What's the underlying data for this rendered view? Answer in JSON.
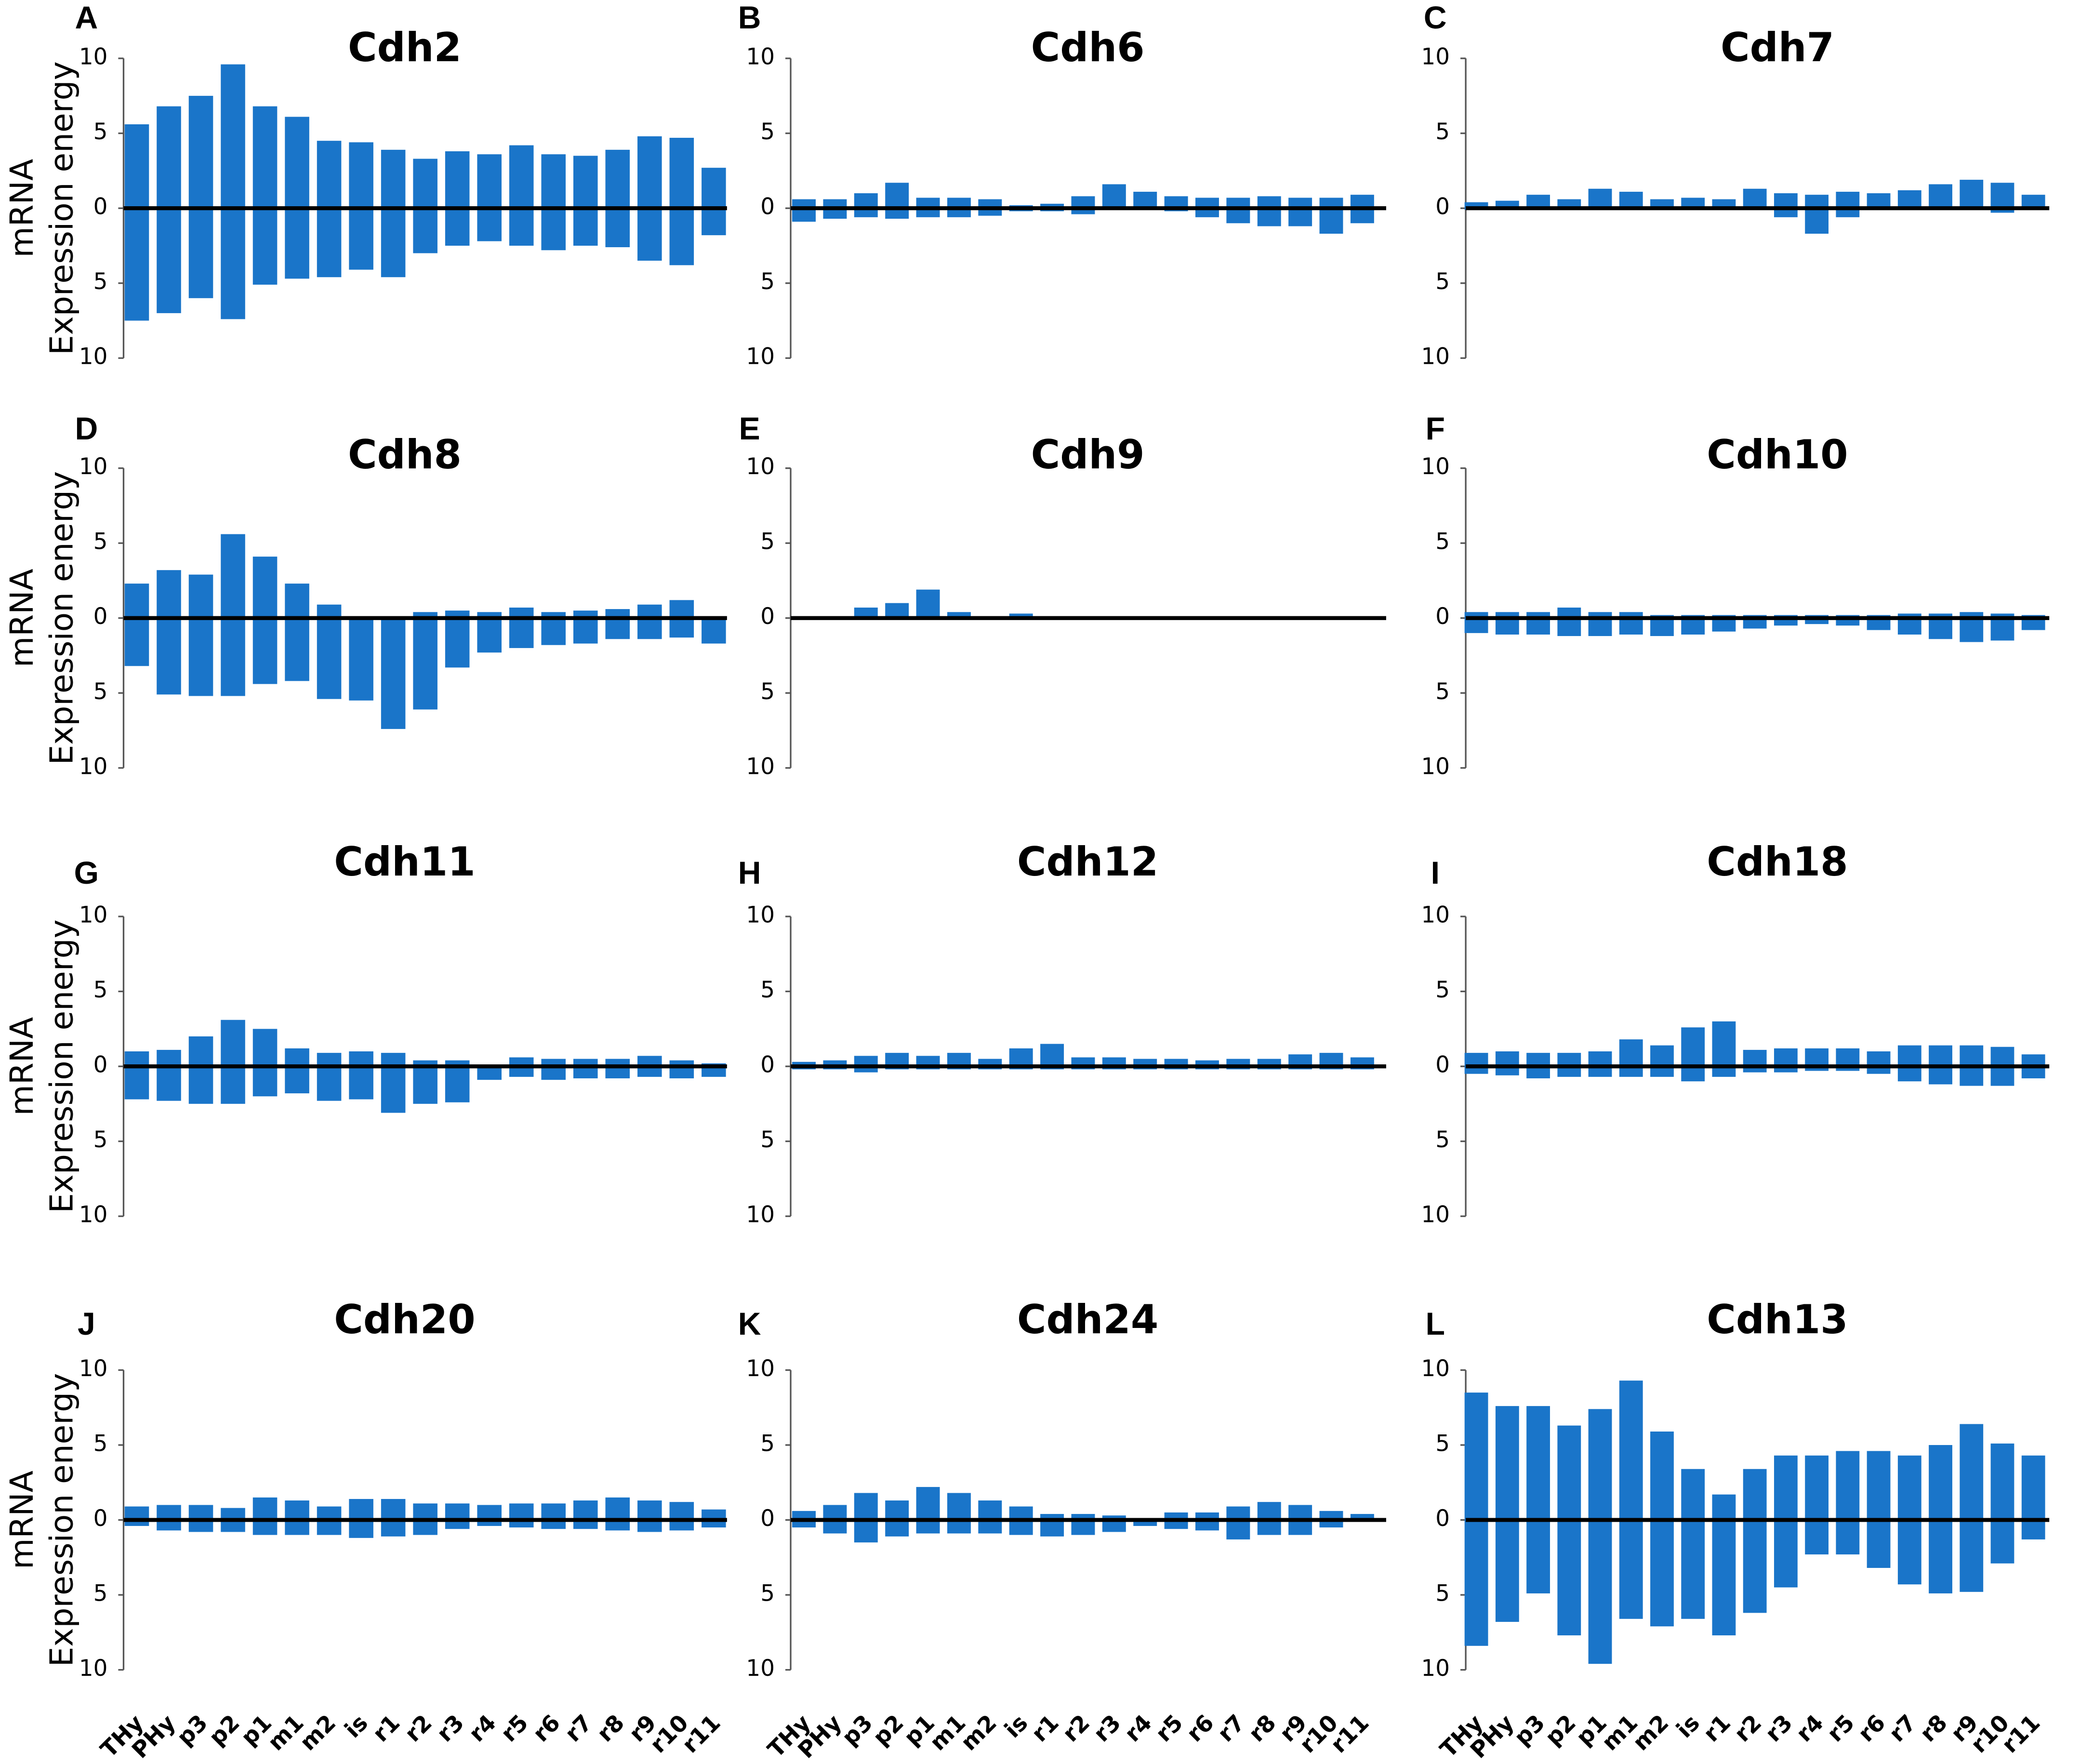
{
  "chart_data": [
    {
      "type": "bar",
      "letter": "A",
      "title": "Cdh2",
      "ylabel": [
        "mRNA",
        "Expression energy"
      ],
      "ylim": [
        -10,
        10
      ],
      "yticks": [
        {
          "value": -10,
          "label": "10"
        },
        {
          "value": -5,
          "label": "5"
        },
        0,
        5,
        10
      ],
      "series": [
        {
          "color": "#1a75c9",
          "values": [
            5.6,
            6.8,
            7.5,
            9.6,
            6.8,
            6.1,
            4.5,
            4.4,
            3.9,
            3.3,
            3.8,
            3.6,
            4.2,
            3.6,
            3.5,
            3.9,
            4.8,
            4.7,
            2.7
          ]
        },
        {
          "color": "#1a75c9",
          "values": [
            -7.5,
            -7.0,
            -6.0,
            -7.4,
            -5.1,
            -4.7,
            -4.6,
            -4.1,
            -4.6,
            -3.0,
            -2.5,
            -2.2,
            -2.5,
            -2.8,
            -2.5,
            -2.6,
            -3.5,
            -3.8,
            -1.8
          ]
        }
      ]
    },
    {
      "type": "bar",
      "letter": "B",
      "title": "Cdh6",
      "ylim": [
        -10,
        10
      ],
      "yticks": [
        {
          "value": -10,
          "label": "10"
        },
        {
          "value": -5,
          "label": "5"
        },
        0,
        5,
        10
      ],
      "series": [
        {
          "color": "#1a75c9",
          "values": [
            0.6,
            0.6,
            1.0,
            1.7,
            0.7,
            0.7,
            0.6,
            0.2,
            0.3,
            0.8,
            1.6,
            1.1,
            0.8,
            0.7,
            0.7,
            0.8,
            0.7,
            0.7,
            0.9
          ]
        },
        {
          "color": "#1a75c9",
          "values": [
            -0.9,
            -0.7,
            -0.6,
            -0.7,
            -0.6,
            -0.6,
            -0.5,
            -0.2,
            -0.2,
            -0.4,
            -0.1,
            -0.1,
            -0.2,
            -0.6,
            -1.0,
            -1.2,
            -1.2,
            -1.7,
            -1.0
          ]
        }
      ]
    },
    {
      "type": "bar",
      "letter": "C",
      "title": "Cdh7",
      "ylim": [
        -10,
        10
      ],
      "yticks": [
        {
          "value": -10,
          "label": "10"
        },
        {
          "value": -5,
          "label": "5"
        },
        0,
        5,
        10
      ],
      "series": [
        {
          "color": "#1a75c9",
          "values": [
            0.4,
            0.5,
            0.9,
            0.6,
            1.3,
            1.1,
            0.6,
            0.7,
            0.6,
            1.3,
            1.0,
            0.9,
            1.1,
            1.0,
            1.2,
            1.6,
            1.9,
            1.7,
            0.9
          ]
        },
        {
          "color": "#1a75c9",
          "values": [
            -0.1,
            -0.1,
            -0.1,
            -0.1,
            -0.1,
            -0.1,
            -0.1,
            -0.1,
            -0.1,
            -0.1,
            -0.6,
            -1.7,
            -0.6,
            -0.1,
            -0.1,
            -0.1,
            -0.1,
            -0.3,
            -0.1
          ]
        }
      ]
    },
    {
      "type": "bar",
      "letter": "D",
      "title": "Cdh8",
      "ylabel": [
        "mRNA",
        "Expression energy"
      ],
      "ylim": [
        -10,
        10
      ],
      "yticks": [
        {
          "value": -10,
          "label": "10"
        },
        {
          "value": -5,
          "label": "5"
        },
        0,
        5,
        10
      ],
      "series": [
        {
          "color": "#1a75c9",
          "values": [
            2.3,
            3.2,
            2.9,
            5.6,
            4.1,
            2.3,
            0.9,
            0,
            0,
            0.4,
            0.5,
            0.4,
            0.7,
            0.4,
            0.5,
            0.6,
            0.9,
            1.2,
            0
          ]
        },
        {
          "color": "#1a75c9",
          "values": [
            -3.2,
            -5.1,
            -5.2,
            -5.2,
            -4.4,
            -4.2,
            -5.4,
            -5.5,
            -7.4,
            -6.1,
            -3.3,
            -2.3,
            -2.0,
            -1.8,
            -1.7,
            -1.4,
            -1.4,
            -1.3,
            -1.7
          ]
        }
      ]
    },
    {
      "type": "bar",
      "letter": "E",
      "title": "Cdh9",
      "ylim": [
        -10,
        10
      ],
      "yticks": [
        {
          "value": -10,
          "label": "10"
        },
        {
          "value": -5,
          "label": "5"
        },
        0,
        5,
        10
      ],
      "series": [
        {
          "color": "#1a75c9",
          "values": [
            0,
            0,
            0.7,
            1.0,
            1.9,
            0.4,
            0,
            0.3,
            0,
            0,
            0,
            0,
            0,
            0,
            0,
            0,
            0,
            0,
            0
          ]
        },
        {
          "color": "#1a75c9",
          "values": [
            0,
            0,
            0,
            0,
            0,
            0,
            0,
            0,
            0,
            0,
            0,
            0,
            0,
            0,
            0,
            0,
            0,
            0,
            0
          ]
        }
      ]
    },
    {
      "type": "bar",
      "letter": "F",
      "title": "Cdh10",
      "ylim": [
        -10,
        10
      ],
      "yticks": [
        {
          "value": -10,
          "label": "10"
        },
        {
          "value": -5,
          "label": "5"
        },
        0,
        5,
        10
      ],
      "series": [
        {
          "color": "#1a75c9",
          "values": [
            0.4,
            0.4,
            0.4,
            0.7,
            0.4,
            0.4,
            0.2,
            0.2,
            0.2,
            0.2,
            0.2,
            0.2,
            0.2,
            0.2,
            0.3,
            0.3,
            0.4,
            0.3,
            0.2
          ]
        },
        {
          "color": "#1a75c9",
          "values": [
            -1.0,
            -1.1,
            -1.1,
            -1.2,
            -1.2,
            -1.1,
            -1.2,
            -1.1,
            -0.9,
            -0.7,
            -0.5,
            -0.4,
            -0.5,
            -0.8,
            -1.1,
            -1.4,
            -1.6,
            -1.5,
            -0.8
          ]
        }
      ]
    },
    {
      "type": "bar",
      "letter": "G",
      "title": "Cdh11",
      "ylabel": [
        "mRNA",
        "Expression energy"
      ],
      "ylim": [
        -10,
        10
      ],
      "yticks": [
        {
          "value": -10,
          "label": "10"
        },
        {
          "value": -5,
          "label": "5"
        },
        0,
        5,
        10
      ],
      "series": [
        {
          "color": "#1a75c9",
          "values": [
            1.0,
            1.1,
            2.0,
            3.1,
            2.5,
            1.2,
            0.9,
            1.0,
            0.9,
            0.4,
            0.4,
            0.1,
            0.6,
            0.5,
            0.5,
            0.5,
            0.7,
            0.4,
            0.2
          ]
        },
        {
          "color": "#1a75c9",
          "values": [
            -2.2,
            -2.3,
            -2.5,
            -2.5,
            -2.0,
            -1.8,
            -2.3,
            -2.2,
            -3.1,
            -2.5,
            -2.4,
            -0.9,
            -0.7,
            -0.9,
            -0.8,
            -0.8,
            -0.7,
            -0.8,
            -0.7
          ]
        }
      ]
    },
    {
      "type": "bar",
      "letter": "H",
      "title": "Cdh12",
      "ylim": [
        -10,
        10
      ],
      "yticks": [
        {
          "value": -10,
          "label": "10"
        },
        {
          "value": -5,
          "label": "5"
        },
        0,
        5,
        10
      ],
      "series": [
        {
          "color": "#1a75c9",
          "values": [
            0.3,
            0.4,
            0.7,
            0.9,
            0.7,
            0.9,
            0.5,
            1.2,
            1.5,
            0.6,
            0.6,
            0.5,
            0.5,
            0.4,
            0.5,
            0.5,
            0.8,
            0.9,
            0.6
          ]
        },
        {
          "color": "#1a75c9",
          "values": [
            -0.2,
            -0.2,
            -0.4,
            -0.2,
            -0.2,
            -0.2,
            -0.2,
            -0.2,
            -0.2,
            -0.2,
            -0.2,
            -0.2,
            -0.2,
            -0.2,
            -0.2,
            -0.2,
            -0.2,
            -0.2,
            -0.2
          ]
        }
      ]
    },
    {
      "type": "bar",
      "letter": "I",
      "title": "Cdh18",
      "ylim": [
        -10,
        10
      ],
      "yticks": [
        {
          "value": -10,
          "label": "10"
        },
        {
          "value": -5,
          "label": "5"
        },
        0,
        5,
        10
      ],
      "series": [
        {
          "color": "#1a75c9",
          "values": [
            0.9,
            1.0,
            0.9,
            0.9,
            1.0,
            1.8,
            1.4,
            2.6,
            3.0,
            1.1,
            1.2,
            1.2,
            1.2,
            1.0,
            1.4,
            1.4,
            1.4,
            1.3,
            0.8
          ]
        },
        {
          "color": "#1a75c9",
          "values": [
            -0.5,
            -0.6,
            -0.8,
            -0.7,
            -0.7,
            -0.7,
            -0.7,
            -1.0,
            -0.7,
            -0.4,
            -0.4,
            -0.3,
            -0.3,
            -0.5,
            -1.0,
            -1.2,
            -1.3,
            -1.3,
            -0.8
          ]
        }
      ]
    },
    {
      "type": "bar",
      "letter": "J",
      "title": "Cdh20",
      "ylabel": [
        "mRNA",
        "Expression energy"
      ],
      "ylim": [
        -10,
        10
      ],
      "yticks": [
        {
          "value": -10,
          "label": "10"
        },
        {
          "value": -5,
          "label": "5"
        },
        0,
        5,
        10
      ],
      "categories": [
        "THy",
        "PHy",
        "p3",
        "p2",
        "p1",
        "m1",
        "m2",
        "is",
        "r1",
        "r2",
        "r3",
        "r4",
        "r5",
        "r6",
        "r7",
        "r8",
        "r9",
        "r10",
        "r11"
      ],
      "series": [
        {
          "color": "#1a75c9",
          "values": [
            0.9,
            1.0,
            1.0,
            0.8,
            1.5,
            1.3,
            0.9,
            1.4,
            1.4,
            1.1,
            1.1,
            1.0,
            1.1,
            1.1,
            1.3,
            1.5,
            1.3,
            1.2,
            0.7
          ]
        },
        {
          "color": "#1a75c9",
          "values": [
            -0.4,
            -0.7,
            -0.8,
            -0.8,
            -1.0,
            -1.0,
            -1.0,
            -1.2,
            -1.1,
            -1.0,
            -0.6,
            -0.4,
            -0.5,
            -0.6,
            -0.6,
            -0.7,
            -0.8,
            -0.7,
            -0.5
          ]
        }
      ]
    },
    {
      "type": "bar",
      "letter": "K",
      "title": "Cdh24",
      "ylim": [
        -10,
        10
      ],
      "yticks": [
        {
          "value": -10,
          "label": "10"
        },
        {
          "value": -5,
          "label": "5"
        },
        0,
        5,
        10
      ],
      "categories": [
        "THy",
        "PHy",
        "p3",
        "p2",
        "p1",
        "m1",
        "m2",
        "is",
        "r1",
        "r2",
        "r3",
        "r4",
        "r5",
        "r6",
        "r7",
        "r8",
        "r9",
        "r10",
        "r11"
      ],
      "series": [
        {
          "color": "#1a75c9",
          "values": [
            0.6,
            1.0,
            1.8,
            1.3,
            2.2,
            1.8,
            1.3,
            0.9,
            0.4,
            0.4,
            0.3,
            0.1,
            0.5,
            0.5,
            0.9,
            1.2,
            1.0,
            0.6,
            0.4
          ]
        },
        {
          "color": "#1a75c9",
          "values": [
            -0.5,
            -0.9,
            -1.5,
            -1.1,
            -0.9,
            -0.9,
            -0.9,
            -1.0,
            -1.1,
            -1.0,
            -0.8,
            -0.4,
            -0.6,
            -0.7,
            -1.3,
            -1.0,
            -1.0,
            -0.5,
            -0.1
          ]
        }
      ]
    },
    {
      "type": "bar",
      "letter": "L",
      "title": "Cdh13",
      "ylim": [
        -10,
        10
      ],
      "yticks": [
        {
          "value": -10,
          "label": "10"
        },
        {
          "value": -5,
          "label": "5"
        },
        0,
        5,
        10
      ],
      "categories": [
        "THy",
        "PHy",
        "p3",
        "p2",
        "p1",
        "m1",
        "m2",
        "is",
        "r1",
        "r2",
        "r3",
        "r4",
        "r5",
        "r6",
        "r7",
        "r8",
        "r9",
        "r10",
        "r11"
      ],
      "series": [
        {
          "color": "#1a75c9",
          "values": [
            8.5,
            7.6,
            7.6,
            6.3,
            7.4,
            9.3,
            5.9,
            3.4,
            1.7,
            3.4,
            4.3,
            4.3,
            4.6,
            4.6,
            4.3,
            5.0,
            6.4,
            5.1,
            4.3
          ]
        },
        {
          "color": "#1a75c9",
          "values": [
            -8.4,
            -6.8,
            -4.9,
            -7.7,
            -9.6,
            -6.6,
            -7.1,
            -6.6,
            -7.7,
            -6.2,
            -4.5,
            -2.3,
            -2.3,
            -3.2,
            -4.3,
            -4.9,
            -4.8,
            -2.9,
            -1.3
          ]
        }
      ]
    }
  ]
}
